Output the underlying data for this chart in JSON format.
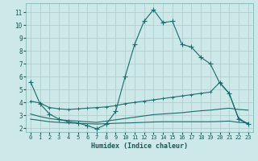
{
  "xlabel": "Humidex (Indice chaleur)",
  "bg_color": "#cce8e8",
  "grid_color": "#aacccc",
  "line_color": "#1a6b6b",
  "xlim": [
    -0.5,
    23.5
  ],
  "ylim": [
    1.7,
    11.7
  ],
  "yticks": [
    2,
    3,
    4,
    5,
    6,
    7,
    8,
    9,
    10,
    11
  ],
  "xticks": [
    0,
    1,
    2,
    3,
    4,
    5,
    6,
    7,
    8,
    9,
    10,
    11,
    12,
    13,
    14,
    15,
    16,
    17,
    18,
    19,
    20,
    21,
    22,
    23
  ],
  "line1_x": [
    0,
    1,
    2,
    3,
    4,
    5,
    6,
    7,
    8,
    9,
    10,
    11,
    12,
    13,
    14,
    15,
    16,
    17,
    18,
    19,
    20,
    21,
    22,
    23
  ],
  "line1_y": [
    5.6,
    3.9,
    3.1,
    2.7,
    2.5,
    2.4,
    2.2,
    1.95,
    2.3,
    3.3,
    6.0,
    8.5,
    10.3,
    11.2,
    10.2,
    10.3,
    8.5,
    8.3,
    7.5,
    7.0,
    5.5,
    4.7,
    2.7,
    2.3
  ],
  "line2_x": [
    0,
    1,
    2,
    3,
    4,
    5,
    6,
    7,
    8,
    9,
    10,
    11,
    12,
    13,
    14,
    15,
    16,
    17,
    18,
    19,
    20,
    21,
    22,
    23
  ],
  "line2_y": [
    4.1,
    3.95,
    3.6,
    3.5,
    3.45,
    3.5,
    3.55,
    3.6,
    3.65,
    3.75,
    3.9,
    4.0,
    4.1,
    4.2,
    4.3,
    4.4,
    4.5,
    4.6,
    4.7,
    4.8,
    5.55,
    4.7,
    2.75,
    2.35
  ],
  "line3_x": [
    0,
    1,
    2,
    3,
    4,
    5,
    6,
    7,
    8,
    9,
    10,
    11,
    12,
    13,
    14,
    15,
    16,
    17,
    18,
    19,
    20,
    21,
    22,
    23
  ],
  "line3_y": [
    3.1,
    2.9,
    2.75,
    2.65,
    2.6,
    2.55,
    2.5,
    2.45,
    2.55,
    2.65,
    2.75,
    2.85,
    2.95,
    3.05,
    3.1,
    3.15,
    3.2,
    3.28,
    3.35,
    3.4,
    3.48,
    3.55,
    3.45,
    3.4
  ],
  "line4_x": [
    0,
    1,
    2,
    3,
    4,
    5,
    6,
    7,
    8,
    9,
    10,
    11,
    12,
    13,
    14,
    15,
    16,
    17,
    18,
    19,
    20,
    21,
    22,
    23
  ],
  "line4_y": [
    2.7,
    2.6,
    2.5,
    2.45,
    2.4,
    2.38,
    2.35,
    2.32,
    2.35,
    2.38,
    2.4,
    2.42,
    2.45,
    2.48,
    2.5,
    2.5,
    2.5,
    2.5,
    2.5,
    2.5,
    2.52,
    2.55,
    2.45,
    2.4
  ]
}
